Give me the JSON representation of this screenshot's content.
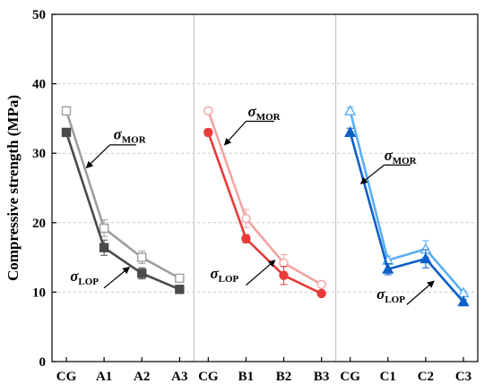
{
  "chart_data": {
    "type": "line",
    "ylabel": "Compressive strength (MPa)",
    "ylim": [
      0,
      50
    ],
    "yticks": [
      0,
      10,
      20,
      30,
      40,
      50
    ],
    "grid": "horizontal dashed",
    "categories": [
      "CG",
      "A1",
      "A2",
      "A3",
      "CG",
      "B1",
      "B2",
      "B3",
      "CG",
      "C1",
      "C2",
      "C3"
    ],
    "panels": [
      {
        "color_mor": "#9e9e9e",
        "color_lop": "#4a4a4a",
        "marker": "square",
        "mor": {
          "values": [
            36.1,
            19.2,
            15.0,
            12.0
          ],
          "errors": [
            0.4,
            1.2,
            0.9,
            0.4
          ]
        },
        "lop": {
          "values": [
            33.0,
            16.4,
            12.7,
            10.4
          ],
          "errors": [
            0.5,
            1.1,
            0.8,
            0.3
          ]
        },
        "annotations": [
          {
            "symbol": "σ",
            "sub": "MOR",
            "label_x": 1.25,
            "label_y": 32.0,
            "arrow_from": [
              1.15,
              31.2
            ],
            "arrow_to": [
              0.55,
              28.0
            ],
            "underline_to": 1.85
          },
          {
            "symbol": "σ",
            "sub": "LOP",
            "label_x": 0.1,
            "label_y": 11.6,
            "arrow_from": [
              1.0,
              10.6
            ],
            "arrow_to": [
              1.65,
              13.5
            ],
            "underline_to": 1.0
          }
        ]
      },
      {
        "color_mor": "#f4a3a3",
        "color_lop": "#e83a3a",
        "marker": "circle",
        "mor": {
          "values": [
            36.1,
            20.6,
            14.2,
            11.1
          ],
          "errors": [
            0.4,
            1.3,
            1.2,
            0.4
          ]
        },
        "lop": {
          "values": [
            33.0,
            17.7,
            12.4,
            9.8
          ],
          "errors": [
            0.5,
            0.6,
            1.3,
            0.3
          ]
        },
        "annotations": [
          {
            "symbol": "σ",
            "sub": "MOR",
            "label_x": 1.05,
            "label_y": 35.3,
            "arrow_from": [
              1.0,
              34.6
            ],
            "arrow_to": [
              0.45,
              31.3
            ],
            "underline_to": 1.75
          },
          {
            "symbol": "σ",
            "sub": "LOP",
            "label_x": 0.05,
            "label_y": 12.0,
            "arrow_from": [
              1.0,
              11.0
            ],
            "arrow_to": [
              1.75,
              14.5
            ],
            "underline_to": 1.0
          }
        ]
      },
      {
        "color_mor": "#5aaef5",
        "color_lop": "#0d5fc9",
        "marker": "triangle",
        "mor": {
          "values": [
            36.1,
            14.6,
            16.2,
            9.9
          ],
          "errors": [
            0.5,
            0.6,
            1.2,
            0.3
          ]
        },
        "lop": {
          "values": [
            33.0,
            13.3,
            14.8,
            8.6
          ],
          "errors": [
            0.6,
            0.8,
            1.3,
            0.3
          ]
        },
        "annotations": [
          {
            "symbol": "σ",
            "sub": "MOR",
            "label_x": 0.9,
            "label_y": 29.0,
            "arrow_from": [
              0.9,
              28.3
            ],
            "arrow_to": [
              0.3,
              25.7
            ],
            "underline_to": 1.6
          },
          {
            "symbol": "σ",
            "sub": "LOP",
            "label_x": 0.7,
            "label_y": 9.0,
            "arrow_from": [
              1.5,
              8.2
            ],
            "arrow_to": [
              2.2,
              11.5
            ],
            "underline_to": 1.5
          }
        ]
      }
    ]
  }
}
